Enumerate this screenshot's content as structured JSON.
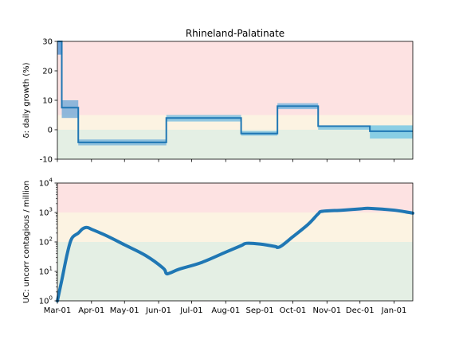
{
  "chart_data": [
    {
      "type": "line",
      "title": "Rhineland-Palatinate",
      "ylabel": "δ: daily growth (%)",
      "ylim": [
        -10,
        30
      ],
      "yticks": [
        -10,
        0,
        10,
        20,
        30
      ],
      "bands": [
        {
          "from": -10,
          "to": 0,
          "color": "#e4efe4"
        },
        {
          "from": 0,
          "to": 5,
          "color": "#fcf3e2"
        },
        {
          "from": 5,
          "to": 30,
          "color": "#fde2e2"
        }
      ],
      "series": [
        {
          "step_x": [
            "2020-03-01",
            "2020-03-05",
            "2020-03-20",
            "2020-06-08",
            "2020-08-15",
            "2020-09-17",
            "2020-10-24",
            "2020-12-10",
            "2021-01-18"
          ],
          "step_y": [
            30,
            7.5,
            -4.3,
            4,
            -1.3,
            8,
            1.2,
            -0.5
          ],
          "ci_low": [
            25.5,
            4,
            -5.3,
            2.8,
            -2,
            7,
            0,
            -3
          ],
          "ci_high": [
            30,
            10,
            -3.3,
            5,
            -0.5,
            9,
            1.5,
            1.5
          ],
          "color": "#1f77b4",
          "ci_colors": [
            "#5a9ad8",
            "#7aaed8",
            "#7fb6db",
            "#7fbfe0",
            "#7dbfdf",
            "#7fb9e0",
            "#7fc6e3",
            "#78c8e4"
          ]
        }
      ]
    },
    {
      "type": "line",
      "ylabel": "UC: uncorr contagious / million",
      "yscale": "log",
      "ylim": [
        1,
        10000
      ],
      "yticks": [
        "10^0",
        "10^1",
        "10^2",
        "10^3",
        "10^4"
      ],
      "bands": [
        {
          "from": 1,
          "to": 100,
          "color": "#e4efe4"
        },
        {
          "from": 100,
          "to": 1000,
          "color": "#fcf3e2"
        },
        {
          "from": 1000,
          "to": 10000,
          "color": "#fde2e2"
        }
      ],
      "series": [
        {
          "color": "#1f77b4",
          "x": [
            "2020-03-01",
            "2020-03-05",
            "2020-03-10",
            "2020-03-14",
            "2020-03-20",
            "2020-03-24",
            "2020-03-28",
            "2020-04-01",
            "2020-04-15",
            "2020-05-01",
            "2020-05-20",
            "2020-06-05",
            "2020-06-08",
            "2020-06-12",
            "2020-06-20",
            "2020-07-10",
            "2020-08-01",
            "2020-08-15",
            "2020-08-20",
            "2020-09-01",
            "2020-09-15",
            "2020-09-17",
            "2020-09-21",
            "2020-10-01",
            "2020-10-15",
            "2020-10-24",
            "2020-10-28",
            "2020-11-15",
            "2020-12-01",
            "2020-12-10",
            "2021-01-01",
            "2021-01-18"
          ],
          "y": [
            1,
            5,
            40,
            130,
            200,
            280,
            310,
            270,
            160,
            80,
            35,
            13,
            8.5,
            9,
            12,
            20,
            45,
            75,
            90,
            85,
            70,
            65,
            75,
            150,
            400,
            900,
            1100,
            1200,
            1320,
            1380,
            1200,
            950
          ]
        }
      ]
    }
  ],
  "xaxis": {
    "tick_labels": [
      "Mar-01",
      "Apr-01",
      "May-01",
      "Jun-01",
      "Jul-01",
      "Aug-01",
      "Sep-01",
      "Oct-01",
      "Nov-01",
      "Dec-01",
      "Jan-01"
    ],
    "tick_dates": [
      "2020-03-01",
      "2020-04-01",
      "2020-05-01",
      "2020-06-01",
      "2020-07-01",
      "2020-08-01",
      "2020-09-01",
      "2020-10-01",
      "2020-11-01",
      "2020-12-01",
      "2021-01-01"
    ],
    "range": [
      "2020-03-01",
      "2021-01-18"
    ]
  }
}
